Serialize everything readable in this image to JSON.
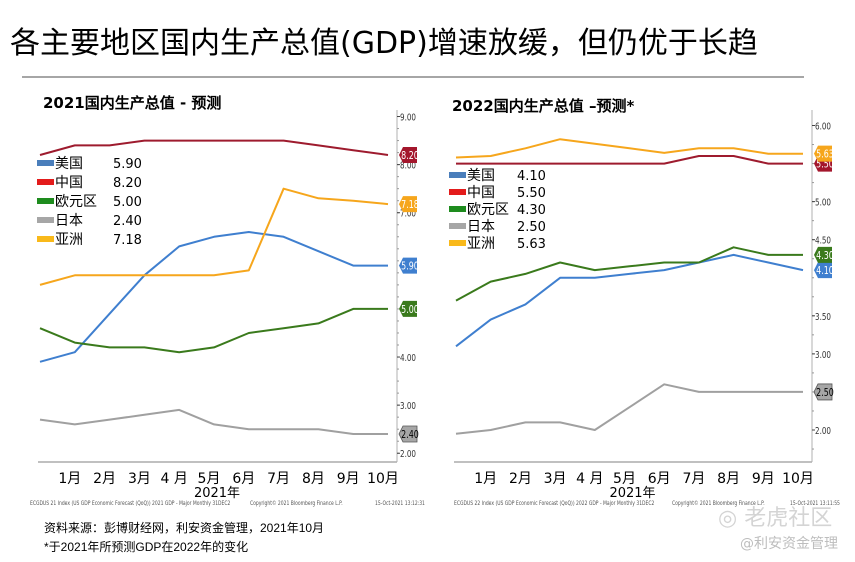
{
  "page": {
    "title": "各主要地区国内生产总值(GDP)增速放缓，但仍优于长趋",
    "source_line1": "资料来源：彭博财经网，利安资金管理，2021年10月",
    "source_line2": "*于2021年所预测GDP在2022年的变化",
    "watermark_brand": "老虎社区",
    "watermark_author": "@利安资金管理"
  },
  "chart_data": [
    {
      "type": "line",
      "title": "2021国内生产总值 - 预测",
      "xlabel": "2021年",
      "ylabel": "",
      "x": [
        "",
        "1月",
        "2月",
        "3月",
        "4月",
        "5月",
        "6月",
        "7月",
        "8月",
        "9月",
        "10月"
      ],
      "xtick_labels": [
        "1月",
        "2月",
        "3月",
        "4 月",
        "5月",
        "6月",
        "7月",
        "8月",
        "9月",
        "10月"
      ],
      "ylim": [
        2.0,
        9.0
      ],
      "yticks": [
        "9.00",
        "8.00",
        "7.00",
        "4.00",
        "3.00",
        "2.00"
      ],
      "ytick_values": [
        9,
        8,
        7,
        4,
        3,
        2
      ],
      "grid": false,
      "legend_position": "top-left",
      "footer_left": "ECGDUS 21 Index (US GDP Economic Forecast (QoQ)) 2021 GDP - Major  Monthly 31DEC2",
      "footer_center": "Copyright© 2021 Bloomberg Finance L.P.",
      "footer_right": "15-Oct-2021 13:12:31",
      "series": [
        {
          "name": "美国",
          "latest": "5.90",
          "color": "#3f7fcf",
          "legend_color": "#4a7ebb",
          "values": [
            3.9,
            4.1,
            4.9,
            5.7,
            6.3,
            6.5,
            6.6,
            6.5,
            6.2,
            5.9,
            5.9
          ]
        },
        {
          "name": "中国",
          "latest": "8.20",
          "color": "#9e1b2e",
          "legend_color": "#e31b1b",
          "values": [
            8.2,
            8.4,
            8.4,
            8.5,
            8.5,
            8.5,
            8.5,
            8.5,
            8.4,
            8.3,
            8.2
          ]
        },
        {
          "name": "欧元区",
          "latest": "5.00",
          "color": "#3a7a1c",
          "legend_color": "#1e8c1e",
          "values": [
            4.6,
            4.3,
            4.2,
            4.2,
            4.1,
            4.2,
            4.5,
            4.6,
            4.7,
            5.0,
            5.0
          ]
        },
        {
          "name": "日本",
          "latest": "2.40",
          "color": "#a0a0a0",
          "legend_color": "#a6a6a6",
          "values": [
            2.7,
            2.6,
            2.7,
            2.8,
            2.9,
            2.6,
            2.5,
            2.5,
            2.5,
            2.4,
            2.4
          ]
        },
        {
          "name": "亚洲",
          "latest": "7.18",
          "color": "#f6a61c",
          "legend_color": "#f9b91a",
          "values": [
            5.5,
            5.7,
            5.7,
            5.7,
            5.7,
            5.7,
            5.8,
            7.5,
            7.3,
            7.25,
            7.18
          ]
        }
      ]
    },
    {
      "type": "line",
      "title": "2022国内生产总值 –预测*",
      "xlabel": "2021年",
      "ylabel": "",
      "x": [
        "",
        "1月",
        "2月",
        "3月",
        "4月",
        "5月",
        "6月",
        "7月",
        "8月",
        "9月",
        "10月"
      ],
      "xtick_labels": [
        "1月",
        "2月",
        "3月",
        "4 月",
        "5月",
        "6月",
        "7月",
        "8月",
        "9月",
        "10月"
      ],
      "ylim": [
        1.5,
        6.0
      ],
      "yticks": [
        "6.00",
        "5.00",
        "4.50",
        "3.50",
        "3.00",
        "2.00"
      ],
      "ytick_values": [
        6,
        5,
        4.5,
        3.5,
        3,
        2
      ],
      "grid": false,
      "legend_position": "top-left",
      "footer_left": "ECGDUS 22 Index (US GDP Economic Forecast (QoQ)) 2022 GDP - Major  Monthly 31DEC2",
      "footer_center": "Copyright© 2021 Bloomberg Finance L.P.",
      "footer_right": "15-Oct-2021 13:11:55",
      "series": [
        {
          "name": "美国",
          "latest": "4.10",
          "color": "#3f7fcf",
          "legend_color": "#4a7ebb",
          "values": [
            3.1,
            3.45,
            3.65,
            4.0,
            4.0,
            4.05,
            4.1,
            4.2,
            4.3,
            4.2,
            4.1
          ]
        },
        {
          "name": "中国",
          "latest": "5.50",
          "color": "#9e1b2e",
          "legend_color": "#e31b1b",
          "values": [
            5.5,
            5.5,
            5.5,
            5.5,
            5.5,
            5.5,
            5.5,
            5.6,
            5.6,
            5.5,
            5.5
          ]
        },
        {
          "name": "欧元区",
          "latest": "4.30",
          "color": "#3a7a1c",
          "legend_color": "#1e8c1e",
          "values": [
            3.7,
            3.95,
            4.05,
            4.2,
            4.1,
            4.15,
            4.2,
            4.2,
            4.4,
            4.3,
            4.3
          ]
        },
        {
          "name": "日本",
          "latest": "2.50",
          "color": "#a0a0a0",
          "legend_color": "#a6a6a6",
          "values": [
            1.95,
            2.0,
            2.1,
            2.1,
            2.0,
            2.3,
            2.6,
            2.5,
            2.5,
            2.5,
            2.5
          ]
        },
        {
          "name": "亚洲",
          "latest": "5.63",
          "color": "#f6a61c",
          "legend_color": "#f9b91a",
          "values": [
            5.58,
            5.6,
            5.7,
            5.82,
            5.76,
            5.7,
            5.64,
            5.7,
            5.7,
            5.63,
            5.63
          ]
        }
      ]
    }
  ]
}
